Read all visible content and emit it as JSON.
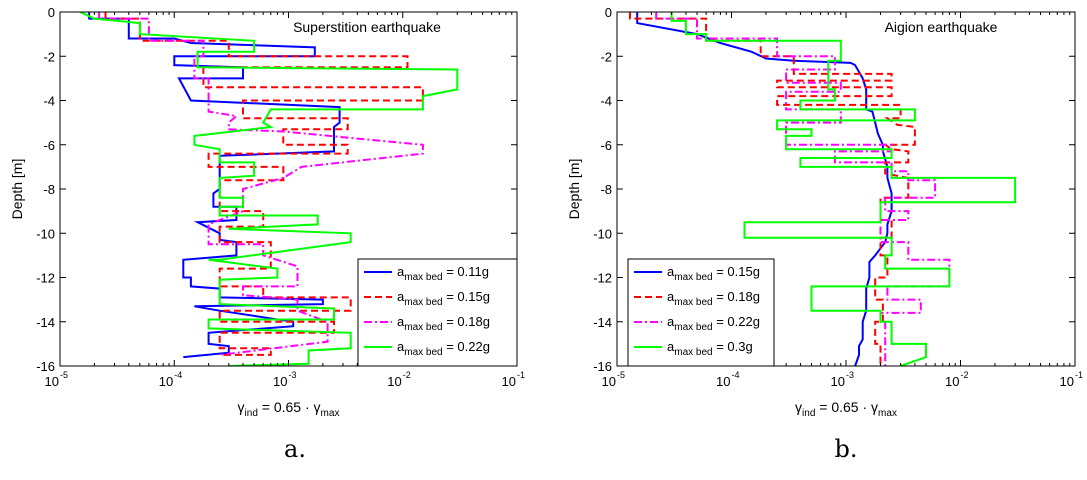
{
  "chart_data": [
    {
      "type": "line",
      "panel_label": "a.",
      "title": "Superstition earthquake",
      "xlabel_parts": [
        "γ",
        "ind",
        " = 0.65 · γ",
        "max"
      ],
      "ylabel": "Depth [m]",
      "xscale": "log",
      "xlim": [
        1e-05,
        0.1
      ],
      "ylim": [
        -16,
        0
      ],
      "x_ticks": [
        {
          "base": "10",
          "exp": "-5",
          "value": 1e-05
        },
        {
          "base": "10",
          "exp": "-4",
          "value": 0.0001
        },
        {
          "base": "10",
          "exp": "-3",
          "value": 0.001
        },
        {
          "base": "10",
          "exp": "-2",
          "value": 0.01
        },
        {
          "base": "10",
          "exp": "-1",
          "value": 0.1
        }
      ],
      "y_ticks": [
        "0",
        "-2",
        "-4",
        "-6",
        "-8",
        "-10",
        "-12",
        "-14",
        "-16"
      ],
      "y_tick_values": [
        0,
        -2,
        -4,
        -6,
        -8,
        -10,
        -12,
        -14,
        -16
      ],
      "legend_position": "lower-right",
      "series": [
        {
          "name_parts": [
            "a",
            "max bed",
            " = 0.11g"
          ],
          "color": "#0000ff",
          "dash": "solid",
          "x": [
            1.8e-05,
            1.8e-05,
            4e-05,
            4e-05,
            0.0001,
            0.00014,
            0.0017,
            0.0017,
            0.0001,
            0.0001,
            0.0004,
            0.0004,
            0.00011,
            0.00014,
            0.0028,
            0.0028,
            0.0025,
            0.0025,
            0.00025,
            0.00025,
            0.00025,
            0.00022,
            0.00022,
            0.00035,
            0.00035,
            0.00016,
            0.00025,
            0.00025,
            0.00035,
            0.00035,
            0.00012,
            0.00012,
            0.00014,
            0.00014,
            0.00025,
            0.00025,
            0.002,
            0.002,
            0.00015,
            0.00025,
            0.0011,
            0.0011,
            0.0002,
            0.0002,
            0.0003,
            0.0003,
            0.00012
          ],
          "y": [
            0,
            -0.3,
            -0.3,
            -1.2,
            -1.2,
            -1.4,
            -1.6,
            -2.0,
            -2.0,
            -2.4,
            -2.5,
            -3.0,
            -3.0,
            -4.0,
            -4.3,
            -5.0,
            -5.2,
            -6.3,
            -6.5,
            -7.5,
            -8.0,
            -8.2,
            -8.8,
            -8.8,
            -9.4,
            -9.5,
            -10.0,
            -10.3,
            -10.4,
            -11.0,
            -11.2,
            -12.0,
            -12.0,
            -12.4,
            -12.5,
            -12.9,
            -13.0,
            -13.2,
            -13.3,
            -13.5,
            -14.0,
            -14.2,
            -14.5,
            -15.0,
            -15.1,
            -15.4,
            -15.6
          ]
        },
        {
          "name_parts": [
            "a",
            "max bed",
            " = 0.15g"
          ],
          "color": "#ff0000",
          "dash": "dashed",
          "x": [
            2.5e-05,
            2.5e-05,
            5e-05,
            5e-05,
            0.0003,
            0.0003,
            0.011,
            0.011,
            0.00018,
            0.00018,
            0.015,
            0.015,
            0.0004,
            0.0004,
            0.0033,
            0.0033,
            0.0009,
            0.0009,
            0.0033,
            0.0033,
            0.0002,
            0.0002,
            0.0009,
            0.0009,
            0.00025,
            0.00025,
            0.0006,
            0.0006,
            0.00025,
            0.00025,
            0.0007,
            0.0007,
            0.00025,
            0.00025,
            0.0006,
            0.0006,
            0.0035,
            0.0035,
            0.00025,
            0.00025,
            0.0025,
            0.0025,
            0.00025,
            0.00025,
            0.0007,
            0.0007,
            0.00025
          ],
          "y": [
            0,
            -0.3,
            -0.3,
            -1.3,
            -1.3,
            -2.0,
            -2.0,
            -2.5,
            -2.5,
            -3.4,
            -3.4,
            -4.0,
            -4.0,
            -4.8,
            -4.8,
            -5.3,
            -5.3,
            -6.0,
            -6.0,
            -6.4,
            -6.4,
            -7.0,
            -7.0,
            -7.6,
            -7.6,
            -9.0,
            -9.0,
            -9.7,
            -9.7,
            -10.4,
            -10.4,
            -11.6,
            -11.6,
            -12.4,
            -12.4,
            -12.9,
            -12.9,
            -13.5,
            -13.5,
            -14.0,
            -14.0,
            -14.5,
            -14.5,
            -15.2,
            -15.2,
            -15.5,
            -15.5
          ]
        },
        {
          "name_parts": [
            "a",
            "max bed",
            " = 0.18g"
          ],
          "color": "#ff00ff",
          "dash": "dashdot",
          "x": [
            2.2e-05,
            2.2e-05,
            6e-05,
            6e-05,
            0.00018,
            0.00018,
            0.00015,
            0.00015,
            0.0002,
            0.0002,
            0.00035,
            0.0003,
            0.0003,
            0.0009,
            0.015,
            0.015,
            0.0013,
            0.0009,
            0.0004,
            0.0004,
            0.00025,
            0.0002,
            0.0002,
            0.0006,
            0.0006,
            0.0012,
            0.0012,
            0.0004,
            0.0004,
            0.0012,
            0.0012,
            0.0022,
            0.0022,
            0.00025
          ],
          "y": [
            0,
            -0.3,
            -0.3,
            -1.3,
            -1.3,
            -2.0,
            -2.0,
            -3.0,
            -3.0,
            -4.5,
            -4.7,
            -5.0,
            -5.3,
            -5.4,
            -6.0,
            -6.4,
            -7.0,
            -7.5,
            -8.0,
            -9.0,
            -9.4,
            -9.6,
            -10.5,
            -10.5,
            -11.0,
            -11.5,
            -12.4,
            -12.4,
            -12.8,
            -13.0,
            -13.5,
            -14.0,
            -14.9,
            -15.5
          ]
        },
        {
          "name_parts": [
            "a",
            "max bed",
            " = 0.22g"
          ],
          "color": "#00ff00",
          "dash": "solid",
          "x": [
            1.5e-05,
            2e-05,
            5e-05,
            5e-05,
            0.0005,
            0.0005,
            0.00016,
            0.00016,
            0.03,
            0.03,
            0.015,
            0.015,
            0.0007,
            0.0006,
            0.0007,
            0.00015,
            0.00015,
            0.00025,
            0.00025,
            0.0005,
            0.0005,
            0.00025,
            0.00025,
            0.0004,
            0.0004,
            0.00025,
            0.00025,
            0.0018,
            0.0018,
            0.0003,
            0.0035,
            0.0035,
            0.00025,
            0.0002,
            0.0008,
            0.0008,
            0.00025,
            0.00025,
            0.0025,
            0.0025,
            0.0002,
            0.0002,
            0.0035,
            0.0035,
            0.0015,
            0.0015,
            0.0003
          ],
          "y": [
            0,
            -0.3,
            -0.5,
            -1.0,
            -1.3,
            -1.8,
            -1.8,
            -2.5,
            -2.6,
            -3.5,
            -3.8,
            -4.4,
            -4.4,
            -5.0,
            -5.2,
            -5.6,
            -6.0,
            -6.2,
            -6.8,
            -6.8,
            -7.4,
            -7.5,
            -8.4,
            -8.4,
            -8.8,
            -8.8,
            -9.2,
            -9.2,
            -9.6,
            -9.8,
            -10.0,
            -10.4,
            -11.2,
            -11.2,
            -11.6,
            -12.0,
            -12.1,
            -13.2,
            -13.4,
            -13.9,
            -13.9,
            -14.3,
            -14.5,
            -15.2,
            -15.3,
            -15.9,
            -16.0
          ]
        }
      ]
    },
    {
      "type": "line",
      "panel_label": "b.",
      "title": "Aigion earthquake",
      "xlabel_parts": [
        "γ",
        "ind",
        " = 0.65 · γ",
        "max"
      ],
      "ylabel": "Depth [m]",
      "xscale": "log",
      "xlim": [
        1e-05,
        0.1
      ],
      "ylim": [
        -16,
        0
      ],
      "x_ticks": [
        {
          "base": "10",
          "exp": "-5",
          "value": 1e-05
        },
        {
          "base": "10",
          "exp": "-4",
          "value": 0.0001
        },
        {
          "base": "10",
          "exp": "-3",
          "value": 0.001
        },
        {
          "base": "10",
          "exp": "-2",
          "value": 0.01
        },
        {
          "base": "10",
          "exp": "-1",
          "value": 0.1
        }
      ],
      "y_ticks": [
        "0",
        "-2",
        "-4",
        "-6",
        "-8",
        "-10",
        "-12",
        "-14",
        "-16"
      ],
      "y_tick_values": [
        0,
        -2,
        -4,
        -6,
        -8,
        -10,
        -12,
        -14,
        -16
      ],
      "legend_position": "lower-left",
      "series": [
        {
          "name_parts": [
            "a",
            "max bed",
            " = 0.15g"
          ],
          "color": "#0000ff",
          "dash": "solid",
          "x": [
            1.5e-05,
            1.5e-05,
            5e-05,
            8e-05,
            0.00015,
            0.0002,
            0.00035,
            0.0011,
            0.0012,
            0.0014,
            0.0015,
            0.0015,
            0.0017,
            0.0018,
            0.0019,
            0.0021,
            0.0021,
            0.0023,
            0.0023,
            0.0025,
            0.0025,
            0.0023,
            0.0023,
            0.0022,
            0.0018,
            0.0016,
            0.0016,
            0.0015,
            0.0015,
            0.0014,
            0.0014,
            0.0013,
            0.0013,
            0.0012
          ],
          "y": [
            0,
            -0.5,
            -1.0,
            -1.4,
            -1.8,
            -2.1,
            -2.2,
            -2.3,
            -2.4,
            -3.0,
            -3.5,
            -4.4,
            -4.5,
            -5.0,
            -5.5,
            -6.0,
            -6.3,
            -7.0,
            -7.5,
            -8.2,
            -9.0,
            -9.6,
            -10.0,
            -10.4,
            -11.0,
            -11.3,
            -12.0,
            -12.5,
            -13.5,
            -14.0,
            -14.8,
            -15.1,
            -15.5,
            -16.0
          ]
        },
        {
          "name_parts": [
            "a",
            "max bed",
            " = 0.18g"
          ],
          "color": "#ff0000",
          "dash": "dashed",
          "x": [
            1.3e-05,
            1.3e-05,
            6e-05,
            6e-05,
            0.00018,
            0.00018,
            0.00035,
            0.00035,
            0.0025,
            0.0025,
            0.00025,
            0.00025,
            0.0025,
            0.0025,
            0.00025,
            0.00025,
            0.003,
            0.003,
            0.0023,
            0.0028,
            0.004,
            0.004,
            0.0022,
            0.0025,
            0.0035,
            0.0035,
            0.0022,
            0.0022,
            0.0035,
            0.0035,
            0.002,
            0.002,
            0.0025,
            0.0025,
            0.002,
            0.002,
            0.0023,
            0.0023,
            0.0018,
            0.0018,
            0.0021,
            0.0021,
            0.0018,
            0.0018,
            0.002,
            0.002
          ],
          "y": [
            0,
            -0.3,
            -0.3,
            -1.3,
            -1.3,
            -2.0,
            -2.0,
            -2.8,
            -2.8,
            -3.1,
            -3.1,
            -3.4,
            -3.4,
            -3.8,
            -3.8,
            -4.2,
            -4.2,
            -4.8,
            -4.8,
            -5.1,
            -5.2,
            -6.0,
            -6.0,
            -6.2,
            -6.3,
            -6.8,
            -6.8,
            -7.3,
            -7.5,
            -8.4,
            -8.4,
            -9.4,
            -9.4,
            -10.2,
            -10.2,
            -11.0,
            -11.0,
            -12.0,
            -12.0,
            -13.0,
            -13.0,
            -14.0,
            -14.0,
            -15.0,
            -15.0,
            -16.0
          ]
        },
        {
          "name_parts": [
            "a",
            "max bed",
            " = 0.22g"
          ],
          "color": "#ff00ff",
          "dash": "dashdot",
          "x": [
            2.2e-05,
            2.2e-05,
            5e-05,
            5e-05,
            0.00025,
            0.00025,
            0.0008,
            0.0008,
            0.0003,
            0.0003,
            0.0009,
            0.0009,
            0.0003,
            0.0003,
            0.0009,
            0.0009,
            0.0003,
            0.0003,
            0.0025,
            0.0025,
            0.0008,
            0.0008,
            0.0025,
            0.0025,
            0.0035,
            0.0035,
            0.006,
            0.006,
            0.0022,
            0.0022,
            0.0035,
            0.0035,
            0.002,
            0.002,
            0.0035,
            0.0035,
            0.008,
            0.008,
            0.0023,
            0.0023,
            0.0045,
            0.0045,
            0.002,
            0.002,
            0.0022,
            0.0022
          ],
          "y": [
            0,
            -0.3,
            -0.3,
            -1.2,
            -1.2,
            -2.0,
            -2.0,
            -2.6,
            -2.6,
            -3.2,
            -3.2,
            -3.6,
            -3.6,
            -4.4,
            -4.4,
            -5.0,
            -5.0,
            -6.0,
            -6.0,
            -6.3,
            -6.3,
            -6.8,
            -6.8,
            -7.2,
            -7.2,
            -7.6,
            -7.6,
            -8.4,
            -8.4,
            -9.0,
            -9.0,
            -9.4,
            -9.4,
            -10.4,
            -10.4,
            -11.2,
            -11.2,
            -12.4,
            -12.4,
            -13.0,
            -13.0,
            -13.6,
            -13.6,
            -14.0,
            -14.0,
            -16.0
          ]
        },
        {
          "name_parts": [
            "a",
            "max bed",
            " = 0.3g"
          ],
          "color": "#00ff00",
          "dash": "solid",
          "x": [
            3e-05,
            3e-05,
            4e-05,
            4e-05,
            6e-05,
            6e-05,
            0.0009,
            0.0009,
            0.0007,
            0.0007,
            0.0008,
            0.0008,
            0.0004,
            0.0004,
            0.004,
            0.004,
            0.00025,
            0.00025,
            0.0005,
            0.0005,
            0.0003,
            0.0003,
            0.0025,
            0.0025,
            0.0004,
            0.0004,
            0.0025,
            0.0025,
            0.03,
            0.03,
            0.002,
            0.002,
            0.00013,
            0.00013,
            0.0025,
            0.0025,
            0.0022,
            0.0022,
            0.008,
            0.008,
            0.0005,
            0.0005,
            0.002,
            0.002,
            0.0025,
            0.0025,
            0.005,
            0.005,
            0.003
          ],
          "y": [
            0,
            -0.4,
            -0.4,
            -1.0,
            -1.0,
            -1.3,
            -1.3,
            -2.2,
            -2.2,
            -3.5,
            -3.5,
            -4.0,
            -4.0,
            -4.4,
            -4.4,
            -4.9,
            -4.9,
            -5.3,
            -5.3,
            -5.6,
            -5.6,
            -6.2,
            -6.2,
            -6.6,
            -6.6,
            -7.0,
            -7.0,
            -7.5,
            -7.5,
            -8.6,
            -8.6,
            -9.5,
            -9.5,
            -10.2,
            -10.2,
            -11.0,
            -11.0,
            -11.6,
            -11.6,
            -12.4,
            -12.4,
            -13.5,
            -13.5,
            -14.0,
            -14.0,
            -15.0,
            -15.0,
            -15.6,
            -16.0
          ]
        }
      ]
    }
  ]
}
